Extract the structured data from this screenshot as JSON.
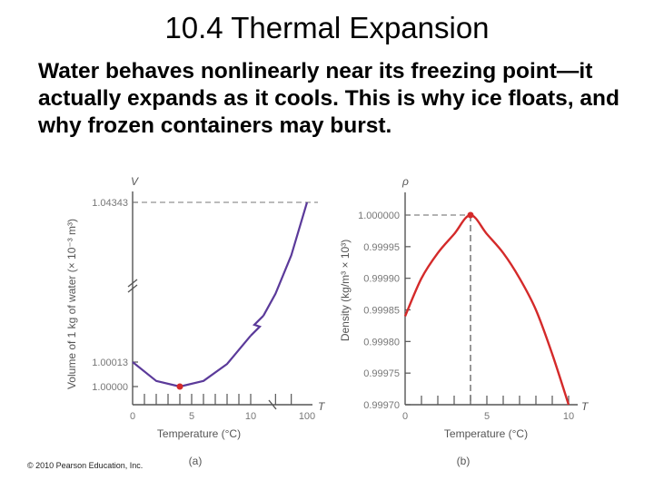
{
  "slide": {
    "title": "10.4 Thermal Expansion",
    "body": "Water behaves nonlinearly near its freezing point—it actually expands as it cools. This is why ice floats, and why frozen containers may burst.",
    "credit": "© 2010 Pearson Education, Inc."
  },
  "colors": {
    "curve_a": "#5b3a9a",
    "curve_b": "#d42a2a",
    "axis": "#555555"
  },
  "chart_data": [
    {
      "type": "line",
      "panel_label": "(a)",
      "ylabel": "Volume of 1 kg of water (× 10⁻³ m³)",
      "y_axis_symbol": "V",
      "xlabel": "Temperature (°C)",
      "x_axis_symbol": "T",
      "y_ticks": [
        "1.04343",
        "1.00013",
        "1.00000"
      ],
      "x_ticks": [
        "0",
        "5",
        "10",
        "100"
      ],
      "axis_breaks": true,
      "min_point": {
        "x": 4,
        "y": 1.0
      },
      "series": [
        {
          "x": [
            0,
            2,
            4,
            6,
            8,
            10
          ],
          "y": [
            1.00013,
            1.00003,
            1.0,
            1.00003,
            1.00012,
            1.00027
          ]
        },
        {
          "x": [
            10,
            40,
            70,
            100
          ],
          "y": [
            1.00027,
            1.0078,
            1.0228,
            1.04343
          ]
        }
      ]
    },
    {
      "type": "line",
      "panel_label": "(b)",
      "ylabel": "Density (kg/m³ × 10³)",
      "y_axis_symbol": "ρ",
      "xlabel": "Temperature (°C)",
      "x_axis_symbol": "T",
      "y_ticks": [
        "1.000000",
        "0.99995",
        "0.99990",
        "0.99985",
        "0.99980",
        "0.99975",
        "0.99970"
      ],
      "x_ticks": [
        "0",
        "5",
        "10"
      ],
      "ylim": [
        0.9997,
        1.0
      ],
      "xlim": [
        0,
        10
      ],
      "max_point": {
        "x": 4,
        "y": 1.0
      },
      "series": [
        {
          "x": [
            0,
            1,
            2,
            3,
            4,
            5,
            6,
            7,
            8,
            9,
            10
          ],
          "y": [
            0.99984,
            0.9999,
            0.99994,
            0.99997,
            1.0,
            0.99997,
            0.99994,
            0.9999,
            0.99985,
            0.99978,
            0.9997
          ]
        }
      ]
    }
  ]
}
